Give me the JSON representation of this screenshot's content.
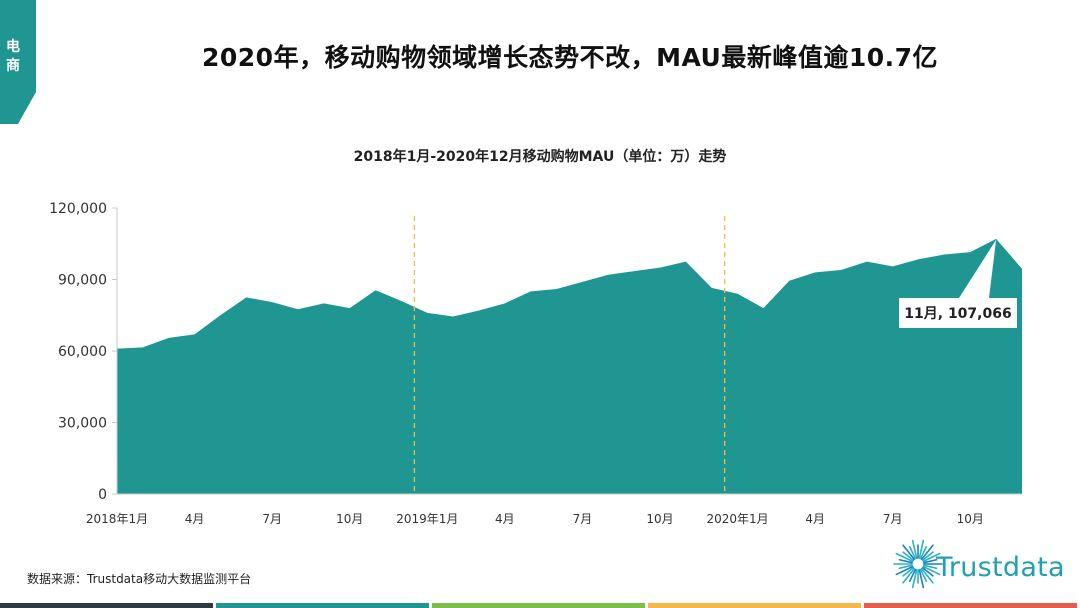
{
  "sidebar_tag": {
    "label": "电商"
  },
  "header": {
    "title": "2020年，移动购物领域增长态势不改，MAU最新峰值逾10.7亿"
  },
  "chart_data": {
    "type": "area",
    "title": "2018年1月-2020年12月移动购物MAU（单位：万）走势",
    "x": [
      "2018-01",
      "2018-02",
      "2018-03",
      "2018-04",
      "2018-05",
      "2018-06",
      "2018-07",
      "2018-08",
      "2018-09",
      "2018-10",
      "2018-11",
      "2018-12",
      "2019-01",
      "2019-02",
      "2019-03",
      "2019-04",
      "2019-05",
      "2019-06",
      "2019-07",
      "2019-08",
      "2019-09",
      "2019-10",
      "2019-11",
      "2019-12",
      "2020-01",
      "2020-02",
      "2020-03",
      "2020-04",
      "2020-05",
      "2020-06",
      "2020-07",
      "2020-08",
      "2020-09",
      "2020-10",
      "2020-11",
      "2020-12"
    ],
    "xtick_labels": [
      {
        "index": 0,
        "label": "2018年1月"
      },
      {
        "index": 3,
        "label": "4月"
      },
      {
        "index": 6,
        "label": "7月"
      },
      {
        "index": 9,
        "label": "10月"
      },
      {
        "index": 12,
        "label": "2019年1月"
      },
      {
        "index": 15,
        "label": "4月"
      },
      {
        "index": 18,
        "label": "7月"
      },
      {
        "index": 21,
        "label": "10月"
      },
      {
        "index": 24,
        "label": "2020年1月"
      },
      {
        "index": 27,
        "label": "4月"
      },
      {
        "index": 30,
        "label": "7月"
      },
      {
        "index": 33,
        "label": "10月"
      }
    ],
    "series": [
      {
        "name": "",
        "values": [
          61000,
          61500,
          65500,
          67000,
          75000,
          82500,
          80500,
          77500,
          80000,
          78000,
          85500,
          81000,
          76000,
          74500,
          77000,
          80000,
          85000,
          86000,
          89000,
          92000,
          93500,
          95000,
          97500,
          86500,
          84000,
          78000,
          89500,
          93000,
          94000,
          97500,
          95500,
          98500,
          100500,
          101500,
          107066,
          94500
        ]
      }
    ],
    "ylim": [
      0,
      120000
    ],
    "yticks": [
      0,
      30000,
      60000,
      90000,
      120000
    ],
    "ytick_labels": [
      "0",
      "30,000",
      "60,000",
      "90,000",
      "120,000"
    ],
    "dividers": [
      {
        "between": [
          11,
          12
        ]
      },
      {
        "between": [
          23,
          24
        ]
      }
    ],
    "annotation": {
      "index": 34,
      "label": "11月, 107,066"
    },
    "grid": false,
    "legend": "none"
  },
  "colors": {
    "area": "#1f9691",
    "divider": "#f5b942",
    "axis": "#c8c8c8",
    "tag": "#1f9691",
    "bottom_bar": [
      "#2d3a45",
      "#1f9691",
      "#7bbf4a",
      "#f3b74d",
      "#e45d4f"
    ]
  },
  "footer": {
    "source": "数据来源：Trustdata移动大数据监测平台",
    "logo_text": "Trustdata"
  }
}
